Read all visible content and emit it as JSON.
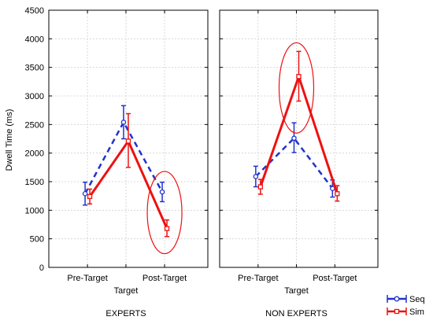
{
  "chart_data": {
    "type": "line",
    "ylabel": "Dwell Time (ms)",
    "ylim": [
      0,
      4500
    ],
    "yticks": [
      0,
      500,
      1000,
      1500,
      2000,
      2500,
      3000,
      3500,
      4000,
      4500
    ],
    "xticks_labeled": [
      "Pre-Target",
      "Post-Target"
    ],
    "categories": [
      "Pre-Target",
      "Target",
      "Post-Target"
    ],
    "grid": true,
    "legend_placement": "bottom-right",
    "panels": [
      {
        "group": "EXPERTS",
        "xlabel": "Target",
        "series": [
          {
            "name": "Seq",
            "color": "#2233cc",
            "style": "dashed",
            "marker": "circle",
            "values": [
              1290,
              2540,
              1320
            ],
            "lower": [
              1090,
              2250,
              1150
            ],
            "upper": [
              1490,
              2830,
              1490
            ]
          },
          {
            "name": "Sim",
            "color": "#ee1111",
            "style": "solid",
            "marker": "square",
            "values": [
              1240,
              2210,
              680
            ],
            "lower": [
              1110,
              1750,
              540
            ],
            "upper": [
              1370,
              2690,
              830
            ]
          }
        ],
        "highlight": {
          "category_index": 2,
          "y_center": 960,
          "y_half": 720
        }
      },
      {
        "group": "NON EXPERTS",
        "xlabel": "Target",
        "series": [
          {
            "name": "Seq",
            "color": "#2233cc",
            "style": "dashed",
            "marker": "circle",
            "values": [
              1590,
              2260,
              1380
            ],
            "lower": [
              1410,
              2010,
              1230
            ],
            "upper": [
              1770,
              2530,
              1530
            ]
          },
          {
            "name": "Sim",
            "color": "#ee1111",
            "style": "solid",
            "marker": "square",
            "values": [
              1410,
              3340,
              1290
            ],
            "lower": [
              1280,
              2910,
              1160
            ],
            "upper": [
              1540,
              3780,
              1430
            ]
          }
        ],
        "highlight": {
          "category_index": 1,
          "y_center": 3140,
          "y_half": 790
        }
      }
    ],
    "legend": [
      {
        "name": "Seq",
        "color": "#2233cc",
        "marker": "circle"
      },
      {
        "name": "Sim",
        "color": "#ee1111",
        "marker": "square"
      }
    ]
  }
}
